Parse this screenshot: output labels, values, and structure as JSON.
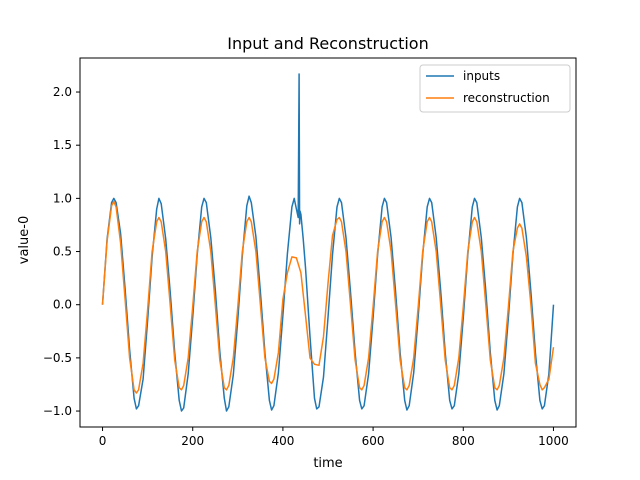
{
  "chart_data": {
    "type": "line",
    "title": "Input and Reconstruction",
    "xlabel": "time",
    "ylabel": "value-0",
    "xlim": [
      -50,
      1050
    ],
    "ylim": [
      -1.15,
      2.32
    ],
    "x_ticks": [
      0,
      200,
      400,
      600,
      800,
      1000
    ],
    "y_ticks": [
      -1.0,
      -0.5,
      0.0,
      0.5,
      1.0,
      1.5,
      2.0
    ],
    "grid": false,
    "legend_position": "top-right",
    "series": [
      {
        "name": "inputs",
        "color": "#1f77b4",
        "x": [
          0,
          10,
          20,
          25,
          30,
          40,
          50,
          60,
          70,
          75,
          80,
          90,
          100,
          110,
          120,
          125,
          130,
          140,
          150,
          160,
          170,
          175,
          180,
          190,
          200,
          210,
          220,
          225,
          230,
          240,
          250,
          260,
          270,
          275,
          280,
          290,
          300,
          310,
          320,
          325,
          330,
          340,
          350,
          360,
          370,
          375,
          380,
          390,
          400,
          410,
          420,
          425,
          430,
          434,
          436,
          437,
          438,
          440,
          445,
          450,
          460,
          470,
          475,
          480,
          490,
          500,
          510,
          520,
          525,
          530,
          540,
          550,
          560,
          570,
          575,
          580,
          590,
          600,
          610,
          620,
          625,
          630,
          640,
          650,
          660,
          670,
          675,
          680,
          690,
          700,
          710,
          720,
          725,
          730,
          740,
          750,
          760,
          770,
          775,
          780,
          790,
          800,
          810,
          820,
          825,
          830,
          840,
          850,
          860,
          870,
          875,
          880,
          890,
          900,
          910,
          920,
          925,
          930,
          940,
          950,
          960,
          970,
          975,
          980,
          990,
          1000
        ],
        "y": [
          0.0,
          0.62,
          0.96,
          1.0,
          0.96,
          0.67,
          0.15,
          -0.42,
          -0.88,
          -0.98,
          -0.95,
          -0.7,
          -0.15,
          0.45,
          0.9,
          1.0,
          0.95,
          0.62,
          0.12,
          -0.45,
          -0.9,
          -1.0,
          -0.97,
          -0.65,
          -0.12,
          0.47,
          0.92,
          1.0,
          0.96,
          0.63,
          0.14,
          -0.44,
          -0.88,
          -1.0,
          -0.96,
          -0.66,
          -0.14,
          0.46,
          0.93,
          1.02,
          0.96,
          0.64,
          0.12,
          -0.45,
          -0.9,
          -0.99,
          -0.95,
          -0.64,
          -0.1,
          0.48,
          0.92,
          1.0,
          0.9,
          0.82,
          2.17,
          0.76,
          0.88,
          0.85,
          0.62,
          0.35,
          -0.3,
          -0.88,
          -0.98,
          -0.96,
          -0.68,
          -0.12,
          0.47,
          0.92,
          1.0,
          0.96,
          0.63,
          0.12,
          -0.45,
          -0.9,
          -0.98,
          -0.95,
          -0.65,
          -0.12,
          0.47,
          0.92,
          1.0,
          0.96,
          0.63,
          0.12,
          -0.45,
          -0.9,
          -0.99,
          -0.95,
          -0.64,
          -0.11,
          0.47,
          0.92,
          1.0,
          0.96,
          0.63,
          0.13,
          -0.45,
          -0.9,
          -0.98,
          -0.95,
          -0.65,
          -0.12,
          0.47,
          0.92,
          1.0,
          0.96,
          0.63,
          0.13,
          -0.45,
          -0.9,
          -0.99,
          -0.95,
          -0.65,
          -0.12,
          0.47,
          0.92,
          1.0,
          0.96,
          0.63,
          0.12,
          -0.45,
          -0.9,
          -0.98,
          -0.95,
          -0.65,
          0.0
        ]
      },
      {
        "name": "reconstruction",
        "color": "#ff7f0e",
        "x": [
          0,
          10,
          20,
          25,
          30,
          40,
          50,
          60,
          70,
          75,
          80,
          90,
          100,
          110,
          120,
          125,
          130,
          140,
          150,
          160,
          170,
          175,
          180,
          190,
          200,
          210,
          220,
          225,
          230,
          240,
          250,
          260,
          270,
          275,
          280,
          290,
          300,
          310,
          320,
          325,
          330,
          340,
          350,
          360,
          370,
          375,
          380,
          390,
          400,
          410,
          420,
          430,
          440,
          450,
          460,
          470,
          480,
          490,
          500,
          510,
          520,
          525,
          530,
          540,
          550,
          560,
          570,
          575,
          580,
          590,
          600,
          610,
          620,
          625,
          630,
          640,
          650,
          660,
          670,
          675,
          680,
          690,
          700,
          710,
          720,
          725,
          730,
          740,
          750,
          760,
          770,
          775,
          780,
          790,
          800,
          810,
          820,
          825,
          830,
          840,
          850,
          860,
          870,
          875,
          880,
          890,
          900,
          910,
          920,
          925,
          930,
          940,
          950,
          960,
          970,
          975,
          980,
          990,
          1000
        ],
        "y": [
          0.0,
          0.6,
          0.93,
          0.97,
          0.92,
          0.58,
          0.05,
          -0.5,
          -0.8,
          -0.83,
          -0.8,
          -0.55,
          -0.05,
          0.5,
          0.78,
          0.82,
          0.78,
          0.5,
          0.0,
          -0.52,
          -0.78,
          -0.8,
          -0.76,
          -0.5,
          -0.02,
          0.5,
          0.78,
          0.82,
          0.78,
          0.5,
          0.0,
          -0.52,
          -0.78,
          -0.8,
          -0.76,
          -0.5,
          -0.02,
          0.5,
          0.78,
          0.82,
          0.78,
          0.5,
          0.0,
          -0.5,
          -0.72,
          -0.74,
          -0.7,
          -0.45,
          0.05,
          0.3,
          0.45,
          0.44,
          0.3,
          -0.1,
          -0.5,
          -0.56,
          -0.57,
          -0.3,
          0.2,
          0.65,
          0.8,
          0.82,
          0.78,
          0.5,
          0.0,
          -0.52,
          -0.78,
          -0.8,
          -0.76,
          -0.5,
          -0.02,
          0.5,
          0.78,
          0.82,
          0.78,
          0.5,
          0.0,
          -0.52,
          -0.78,
          -0.8,
          -0.76,
          -0.5,
          -0.02,
          0.5,
          0.78,
          0.82,
          0.78,
          0.5,
          0.0,
          -0.52,
          -0.78,
          -0.8,
          -0.76,
          -0.5,
          -0.02,
          0.5,
          0.78,
          0.82,
          0.78,
          0.5,
          0.0,
          -0.52,
          -0.78,
          -0.8,
          -0.76,
          -0.5,
          -0.02,
          0.5,
          0.72,
          0.76,
          0.72,
          0.45,
          0.0,
          -0.55,
          -0.75,
          -0.8,
          -0.78,
          -0.7,
          -0.4
        ]
      }
    ]
  }
}
